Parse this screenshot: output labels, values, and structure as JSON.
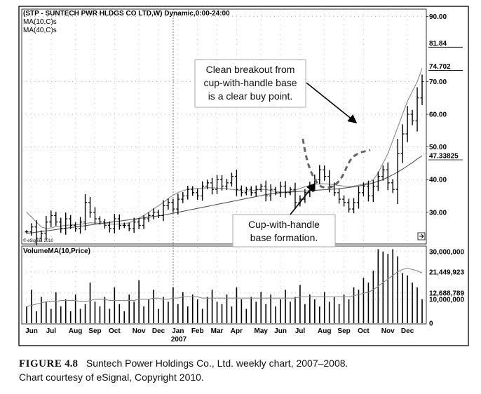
{
  "chart_data": {
    "type": "candlestick",
    "title": "(STP - SUNTECH PWR HLDGS CO LTD,W) Dynamic,0:00-24:00",
    "legend": [
      "MA(10,C)s",
      "MA(40,C)s"
    ],
    "watermark": "© eSignal, 2010",
    "price_ylim": [
      20.5,
      92
    ],
    "price_ticks": [
      "90.00",
      "70.00",
      "60.00",
      "50.00",
      "40.00",
      "30.00"
    ],
    "price_tick_values": [
      90,
      70,
      60,
      50,
      40,
      30
    ],
    "price_flags": [
      {
        "label": "81.84",
        "value": 81.84
      },
      {
        "label": "74.702",
        "value": 74.702
      },
      {
        "label": "47.33825",
        "value": 47.33825
      }
    ],
    "x_labels": [
      "Jun",
      "Jul",
      "Aug",
      "Sep",
      "Oct",
      "Nov",
      "Dec",
      "Jan",
      "Feb",
      "Mar",
      "Apr",
      "May",
      "Jun",
      "Jul",
      "Aug",
      "Sep",
      "Oct",
      "Nov",
      "Dec"
    ],
    "x_label_weeks": [
      1,
      5,
      10,
      14,
      18,
      23,
      27,
      31,
      35,
      39,
      43,
      48,
      52,
      56,
      61,
      65,
      69,
      74,
      78
    ],
    "year_label": "2007",
    "year_label_week": 31,
    "weeks": 82,
    "close": [
      24,
      25.5,
      22,
      23.5,
      27,
      29,
      27,
      25,
      28,
      26,
      25,
      27,
      33,
      30,
      28,
      27,
      26,
      25,
      28,
      26,
      26,
      25,
      27,
      26,
      28,
      29,
      30,
      29,
      32,
      33,
      31,
      34,
      35,
      37,
      36,
      35,
      38,
      39,
      37,
      40,
      38,
      39,
      41,
      37,
      36,
      37,
      36,
      37,
      38,
      35,
      37,
      36,
      38,
      36,
      37,
      33,
      34,
      36,
      38,
      40,
      43,
      41,
      38,
      36,
      34,
      33,
      31,
      33,
      36,
      38,
      35,
      38,
      41,
      43,
      39,
      37,
      48,
      54,
      60,
      58,
      65,
      70
    ],
    "ma10": [
      30,
      28.5,
      27,
      25.5,
      25,
      25.2,
      25.6,
      25.8,
      26,
      26.1,
      26.2,
      26.3,
      26.6,
      26.8,
      26.7,
      26.6,
      26.5,
      26.4,
      26.3,
      26.4,
      26.5,
      26.8,
      27.5,
      28.2,
      29,
      30,
      31,
      32,
      33,
      34.2,
      35.2,
      36,
      36.6,
      37,
      37.2,
      37.3,
      37.4,
      37.5,
      37.5,
      37.4,
      37.3,
      37.2,
      37,
      36.8,
      36.6,
      36.5,
      36.6,
      36.8,
      37,
      37,
      36.7,
      36.4,
      36.2,
      36.2,
      36.4,
      36.8,
      37.3,
      37.8,
      38.3,
      38.6,
      38.7,
      38.7,
      38.6,
      38.4,
      38.2,
      38,
      37.9,
      38,
      38.3,
      38.6,
      39,
      40,
      42,
      45,
      48,
      52,
      56,
      60,
      64,
      67,
      70,
      74
    ],
    "ma40": [
      23.5,
      23.7,
      23.9,
      24.1,
      24.3,
      24.5,
      24.7,
      24.9,
      25.1,
      25.3,
      25.5,
      25.7,
      25.9,
      26.1,
      26.3,
      26.5,
      26.7,
      26.9,
      27.1,
      27.3,
      27.5,
      27.7,
      27.9,
      28.1,
      28.3,
      28.5,
      28.7,
      28.9,
      29.1,
      29.4,
      29.7,
      30,
      30.3,
      30.6,
      30.9,
      31.2,
      31.5,
      31.8,
      32.1,
      32.4,
      32.7,
      33,
      33.3,
      33.6,
      33.9,
      34.2,
      34.5,
      34.8,
      35.1,
      35.4,
      35.6,
      35.8,
      36,
      36.1,
      36.2,
      36.3,
      36.4,
      36.5,
      36.6,
      36.7,
      36.8,
      36.9,
      37,
      37.1,
      37.2,
      37.4,
      37.6,
      37.8,
      38,
      38.3,
      38.6,
      39,
      39.5,
      40,
      40.7,
      41.5,
      42.3,
      43.2,
      44.2,
      45.2,
      46.3,
      47.3
    ],
    "volume_title": "VolumeMA(10,Price)",
    "volume_ylim": [
      0,
      32000000
    ],
    "volume_ticks": [
      "30,000,000",
      "21,449,923",
      "12,688,789",
      "10,000,000",
      "0"
    ],
    "volume_tick_values": [
      30000000,
      21449923,
      12688789,
      10000000,
      0
    ],
    "volume": [
      7,
      14,
      5,
      11,
      9,
      6,
      13,
      7,
      10,
      5,
      12,
      6,
      8,
      17,
      9,
      7,
      11,
      6,
      15,
      8,
      5,
      12,
      9,
      18,
      7,
      10,
      14,
      6,
      11,
      9,
      15,
      8,
      13,
      7,
      12,
      10,
      6,
      11,
      14,
      9,
      8,
      12,
      7,
      15,
      10,
      6,
      11,
      9,
      13,
      8,
      12,
      7,
      10,
      14,
      9,
      11,
      16,
      8,
      12,
      10,
      7,
      13,
      9,
      11,
      8,
      12,
      10,
      15,
      14,
      19,
      17,
      22,
      31,
      30,
      29,
      31,
      28,
      21,
      20,
      17,
      15,
      10
    ],
    "volume_ma": [
      7,
      7.5,
      8,
      8.5,
      9,
      9,
      9,
      9.5,
      9.5,
      9.5,
      9.5,
      9,
      9,
      9.5,
      10,
      10,
      10,
      9.5,
      9.5,
      9.5,
      9.5,
      9.5,
      9.5,
      10,
      10,
      10,
      10.5,
      10.5,
      10,
      10,
      10.5,
      10.5,
      11,
      11,
      11,
      11,
      10.5,
      10.5,
      10.5,
      10.5,
      10.5,
      10.5,
      10.5,
      10.5,
      10.5,
      10.5,
      10.5,
      10.5,
      10.5,
      10.5,
      10.5,
      10.5,
      10.5,
      10.5,
      10.5,
      10.5,
      11,
      11,
      11,
      11,
      11,
      11,
      11,
      11,
      11,
      11,
      11,
      11.5,
      12,
      12.5,
      13,
      14,
      15.5,
      17,
      18.5,
      20,
      21.5,
      22.5,
      23,
      22.5,
      22,
      21
    ],
    "volume_scale_label_unit": "millions"
  },
  "annotations": {
    "breakout": "Clean breakout from cup-with-handle base is a clear buy point.",
    "breakout_lines": [
      "Clean breakout from",
      "cup-with-handle base",
      "is a clear buy point."
    ],
    "cup": "Cup-with-handle base formation.",
    "cup_lines": [
      "Cup-with-handle",
      "base formation."
    ]
  },
  "caption": {
    "figure_label": "FIGURE",
    "figure_number": "4.8",
    "text": "Suntech Power Holdings Co., Ltd. weekly chart, 2007–2008.",
    "credit": "Chart courtesy of eSignal, Copyright 2010."
  }
}
